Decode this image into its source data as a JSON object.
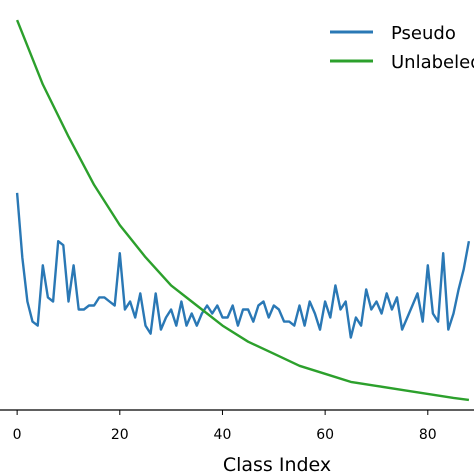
{
  "chart_data": {
    "type": "line",
    "xlabel": "Class Index",
    "ylabel": "",
    "title": "",
    "xlim": [
      -1,
      89
    ],
    "ylim": [
      0,
      100
    ],
    "x_ticks": [
      0,
      20,
      40,
      60,
      80
    ],
    "grid": false,
    "legend_position": "top-right",
    "series": [
      {
        "name": "Pseudo",
        "color": "#2a78b5",
        "x": [
          0,
          1,
          2,
          3,
          4,
          5,
          6,
          7,
          8,
          9,
          10,
          11,
          12,
          13,
          14,
          15,
          16,
          17,
          18,
          19,
          20,
          21,
          22,
          23,
          24,
          25,
          26,
          27,
          28,
          29,
          30,
          31,
          32,
          33,
          34,
          35,
          36,
          37,
          38,
          39,
          40,
          41,
          42,
          43,
          44,
          45,
          46,
          47,
          48,
          49,
          50,
          51,
          52,
          53,
          54,
          55,
          56,
          57,
          58,
          59,
          60,
          61,
          62,
          63,
          64,
          65,
          66,
          67,
          68,
          69,
          70,
          71,
          72,
          73,
          74,
          75,
          76,
          77,
          78,
          79,
          80,
          81,
          82,
          83,
          84,
          85,
          86,
          87,
          88
        ],
        "values": [
          54,
          38,
          27,
          22,
          21,
          36,
          28,
          27,
          42,
          41,
          27,
          36,
          25,
          25,
          26,
          26,
          28,
          28,
          27,
          26,
          39,
          25,
          27,
          23,
          29,
          21,
          19,
          29,
          20,
          23,
          25,
          21,
          27,
          21,
          24,
          21,
          24,
          26,
          24,
          26,
          23,
          23,
          26,
          21,
          25,
          25,
          22,
          26,
          27,
          23,
          26,
          25,
          22,
          22,
          21,
          26,
          21,
          27,
          24,
          20,
          27,
          23,
          31,
          25,
          27,
          18,
          23,
          21,
          30,
          25,
          27,
          24,
          29,
          25,
          28,
          20,
          23,
          26,
          29,
          22,
          36,
          24,
          22,
          39,
          20,
          24,
          30,
          35,
          42
        ]
      },
      {
        "name": "Unlabeled",
        "color": "#2ca02c",
        "x": [
          0,
          5,
          10,
          15,
          20,
          25,
          30,
          35,
          40,
          45,
          50,
          55,
          60,
          65,
          70,
          75,
          80,
          85,
          88
        ],
        "values": [
          97,
          81,
          68,
          56,
          46,
          38,
          31,
          26,
          21,
          17,
          14,
          11,
          9,
          7,
          6,
          5,
          4,
          3,
          2.5
        ]
      }
    ]
  },
  "legend": {
    "items": [
      {
        "label": "Pseudo",
        "color": "#2a78b5"
      },
      {
        "label": "Unlabeled",
        "color": "#2ca02c"
      }
    ]
  }
}
